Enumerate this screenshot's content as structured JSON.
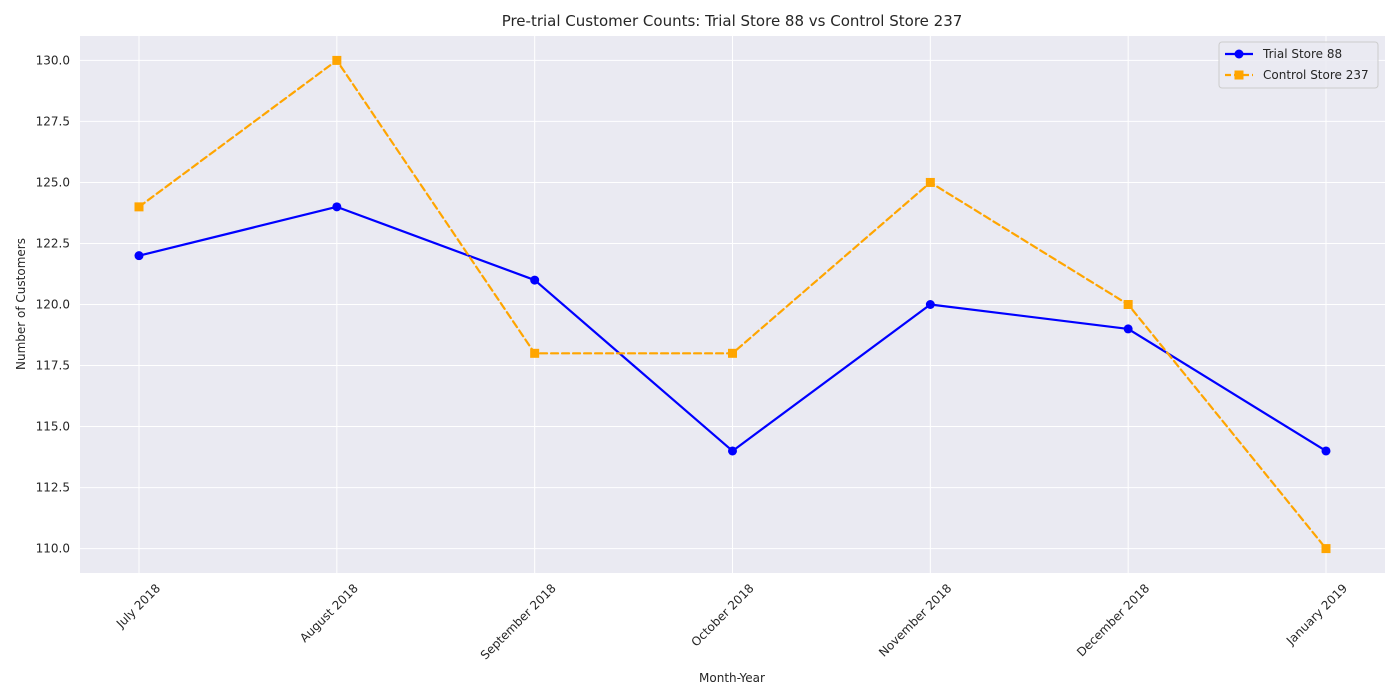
{
  "chart_data": {
    "type": "line",
    "title": "Pre-trial Customer Counts: Trial Store 88 vs Control Store 237",
    "xlabel": "Month-Year",
    "ylabel": "Number of Customers",
    "categories": [
      "July 2018",
      "August 2018",
      "September 2018",
      "October 2018",
      "November 2018",
      "December 2018",
      "January 2019"
    ],
    "series": [
      {
        "name": "Trial Store 88",
        "values": [
          122,
          124,
          121,
          114,
          120,
          119,
          114
        ],
        "color": "#0000ff",
        "line_style": "solid",
        "marker": "circle"
      },
      {
        "name": "Control Store 237",
        "values": [
          124,
          130,
          118,
          118,
          125,
          120,
          110
        ],
        "color": "#ffa500",
        "line_style": "dashed",
        "marker": "square"
      }
    ],
    "ylim": [
      109,
      131
    ],
    "yticks": [
      110.0,
      112.5,
      115.0,
      117.5,
      120.0,
      122.5,
      125.0,
      127.5,
      130.0
    ],
    "grid": true,
    "legend_position": "top-right",
    "background_color": "#eaeaf2"
  }
}
